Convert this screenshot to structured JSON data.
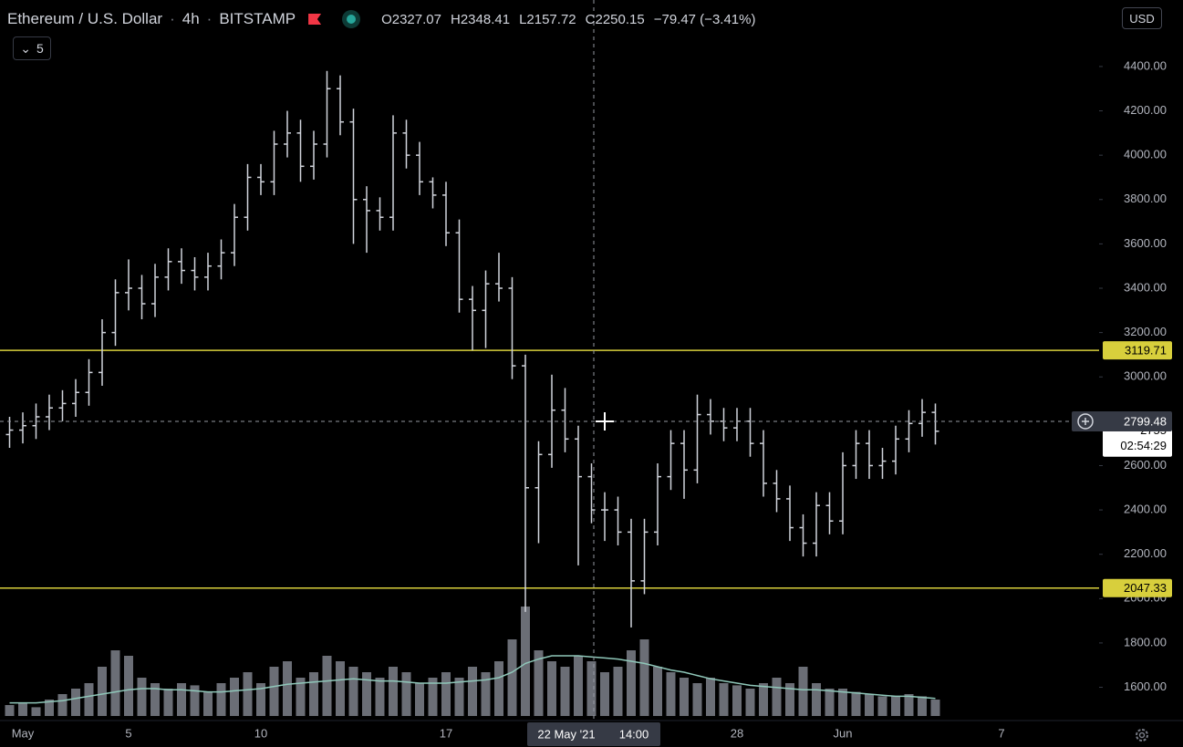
{
  "header": {
    "symbol": "Ethereum / U.S. Dollar",
    "interval": "4h",
    "exchange": "BITSTAMP",
    "ohlc": [
      {
        "label": "O",
        "value": "2327.07"
      },
      {
        "label": "H",
        "value": "2348.41"
      },
      {
        "label": "L",
        "value": "2157.72"
      },
      {
        "label": "C",
        "value": "2250.15"
      }
    ],
    "change": "−79.47 (−3.41%)",
    "indicator_count": "5",
    "currency": "USD"
  },
  "chart_data": {
    "type": "ohlc",
    "categories": [
      null,
      "May",
      null,
      null,
      null,
      null,
      null,
      null,
      null,
      "5",
      null,
      null,
      null,
      null,
      null,
      null,
      null,
      null,
      null,
      "10",
      null,
      null,
      null,
      null,
      null,
      null,
      null,
      null,
      null,
      null,
      null,
      null,
      null,
      "17",
      null,
      null,
      null,
      null,
      null,
      null,
      null,
      null,
      null,
      null,
      null,
      null,
      null,
      null,
      null,
      null,
      null,
      null,
      null,
      null,
      null,
      "28",
      null,
      null,
      null,
      null,
      null,
      null,
      null,
      "Jun",
      null,
      null,
      null,
      null,
      null,
      null,
      null,
      null,
      null,
      null,
      null,
      "7",
      null
    ],
    "open": [
      2740,
      2760,
      2780,
      2820,
      2860,
      2880,
      2930,
      3020,
      3200,
      3380,
      3400,
      3330,
      3450,
      3520,
      3480,
      3450,
      3500,
      3560,
      3720,
      3900,
      3880,
      4050,
      4100,
      3950,
      4050,
      4300,
      4150,
      3800,
      3750,
      3720,
      4100,
      4000,
      3880,
      3820,
      3650,
      3350,
      3300,
      3420,
      3400,
      3050,
      2500,
      2650,
      2850,
      2720,
      2550,
      2400,
      2400,
      2300,
      2080,
      2300,
      2550,
      2700,
      2580,
      2830,
      2800,
      2770,
      2800,
      2700,
      2520,
      2450,
      2320,
      2250,
      2420,
      2350,
      2600,
      2700,
      2600,
      2620,
      2720,
      2790,
      2840,
      null,
      null,
      null,
      null,
      null,
      null
    ],
    "high": [
      2820,
      2840,
      2880,
      2920,
      2940,
      2990,
      3080,
      3260,
      3440,
      3530,
      3460,
      3510,
      3580,
      3580,
      3540,
      3560,
      3620,
      3780,
      3960,
      3960,
      4110,
      4200,
      4160,
      4110,
      4380,
      4360,
      4210,
      3860,
      3810,
      4180,
      4160,
      4060,
      3900,
      3880,
      3710,
      3410,
      3480,
      3560,
      3450,
      3100,
      2710,
      3010,
      2950,
      2780,
      2610,
      2480,
      2460,
      2360,
      2360,
      2610,
      2760,
      2760,
      2920,
      2900,
      2860,
      2860,
      2860,
      2760,
      2580,
      2510,
      2380,
      2480,
      2480,
      2660,
      2760,
      2760,
      2680,
      2780,
      2850,
      2900,
      2880,
      null,
      null,
      null,
      null,
      null,
      null
    ],
    "low": [
      2680,
      2700,
      2720,
      2760,
      2800,
      2820,
      2870,
      2960,
      3140,
      3300,
      3260,
      3270,
      3390,
      3420,
      3390,
      3390,
      3440,
      3500,
      3660,
      3820,
      3820,
      3990,
      3880,
      3890,
      3990,
      4090,
      3600,
      3560,
      3660,
      3660,
      3940,
      3820,
      3760,
      3590,
      3290,
      3120,
      3130,
      3340,
      2990,
      1940,
      2250,
      2590,
      2660,
      2150,
      2340,
      2260,
      2240,
      1870,
      2020,
      2240,
      2490,
      2450,
      2520,
      2740,
      2710,
      2710,
      2640,
      2460,
      2390,
      2260,
      2190,
      2190,
      2290,
      2290,
      2540,
      2540,
      2540,
      2560,
      2660,
      2730,
      2695,
      null,
      null,
      null,
      null,
      null,
      null
    ],
    "close": [
      2760,
      2780,
      2820,
      2860,
      2880,
      2930,
      3020,
      3200,
      3380,
      3400,
      3330,
      3450,
      3520,
      3480,
      3450,
      3500,
      3560,
      3720,
      3900,
      3880,
      4050,
      4100,
      3950,
      4050,
      4300,
      4150,
      3800,
      3750,
      3720,
      4100,
      4000,
      3880,
      3820,
      3650,
      3350,
      3300,
      3420,
      3400,
      3050,
      2500,
      2650,
      2850,
      2720,
      2550,
      2400,
      2400,
      2300,
      2080,
      2300,
      2550,
      2700,
      2580,
      2830,
      2800,
      2770,
      2800,
      2700,
      2520,
      2450,
      2320,
      2250,
      2420,
      2350,
      2600,
      2700,
      2600,
      2620,
      2720,
      2790,
      2840,
      2755,
      null,
      null,
      null,
      null,
      null,
      null
    ],
    "color": "#d1d4dc",
    "volume": {
      "values": [
        10,
        12,
        8,
        15,
        20,
        25,
        30,
        45,
        60,
        55,
        35,
        30,
        25,
        30,
        28,
        22,
        30,
        35,
        40,
        30,
        45,
        50,
        35,
        40,
        55,
        50,
        45,
        40,
        35,
        45,
        40,
        30,
        35,
        40,
        35,
        45,
        40,
        50,
        70,
        100,
        60,
        50,
        45,
        55,
        50,
        40,
        45,
        60,
        70,
        45,
        40,
        35,
        30,
        35,
        30,
        28,
        25,
        30,
        35,
        30,
        45,
        30,
        25,
        25,
        22,
        20,
        18,
        18,
        20,
        18,
        15,
        null,
        null,
        null,
        null,
        null,
        null
      ],
      "color": "#6b6e76",
      "ylim": [
        0,
        100
      ],
      "ma": {
        "values": [
          12,
          12,
          12,
          13,
          14,
          16,
          18,
          20,
          22,
          24,
          25,
          25,
          24,
          24,
          23,
          22,
          22,
          23,
          24,
          25,
          27,
          29,
          30,
          31,
          32,
          33,
          34,
          33,
          32,
          32,
          31,
          30,
          30,
          30,
          31,
          32,
          33,
          35,
          40,
          48,
          52,
          55,
          55,
          55,
          54,
          53,
          52,
          50,
          48,
          45,
          42,
          40,
          37,
          34,
          32,
          30,
          28,
          27,
          26,
          25,
          24,
          24,
          23,
          22,
          21,
          20,
          19,
          18,
          18,
          17,
          16,
          null,
          null,
          null,
          null,
          null,
          null
        ],
        "color": "#8fc7b9"
      }
    },
    "ylim": [
      1450,
      4700
    ],
    "yticks": [
      {
        "value": 1600,
        "label": "1600.00"
      },
      {
        "value": 1800,
        "label": "1800.00"
      },
      {
        "value": 2000,
        "label": "2000.00"
      },
      {
        "value": 2200,
        "label": "2200.00"
      },
      {
        "value": 2400,
        "label": "2400.00"
      },
      {
        "value": 2600,
        "label": "2600.00"
      },
      {
        "value": 2800,
        "label": "2800.00"
      },
      {
        "value": 3000,
        "label": "3000.00"
      },
      {
        "value": 3200,
        "label": "3200.00"
      },
      {
        "value": 3400,
        "label": "3400.00"
      },
      {
        "value": 3600,
        "label": "3600.00"
      },
      {
        "value": 3800,
        "label": "3800.00"
      },
      {
        "value": 4000,
        "label": "4000.00"
      },
      {
        "value": 4200,
        "label": "4200.00"
      },
      {
        "value": 4400,
        "label": "4400.00"
      }
    ],
    "levels": [
      {
        "value": 3119.71,
        "color": "#d8cf3c"
      },
      {
        "value": 2047.33,
        "color": "#d8cf3c"
      }
    ],
    "crosshair": {
      "price": 2799.48,
      "date": "22 May '21",
      "time": "14:00"
    },
    "countdown": "02:54:29"
  }
}
